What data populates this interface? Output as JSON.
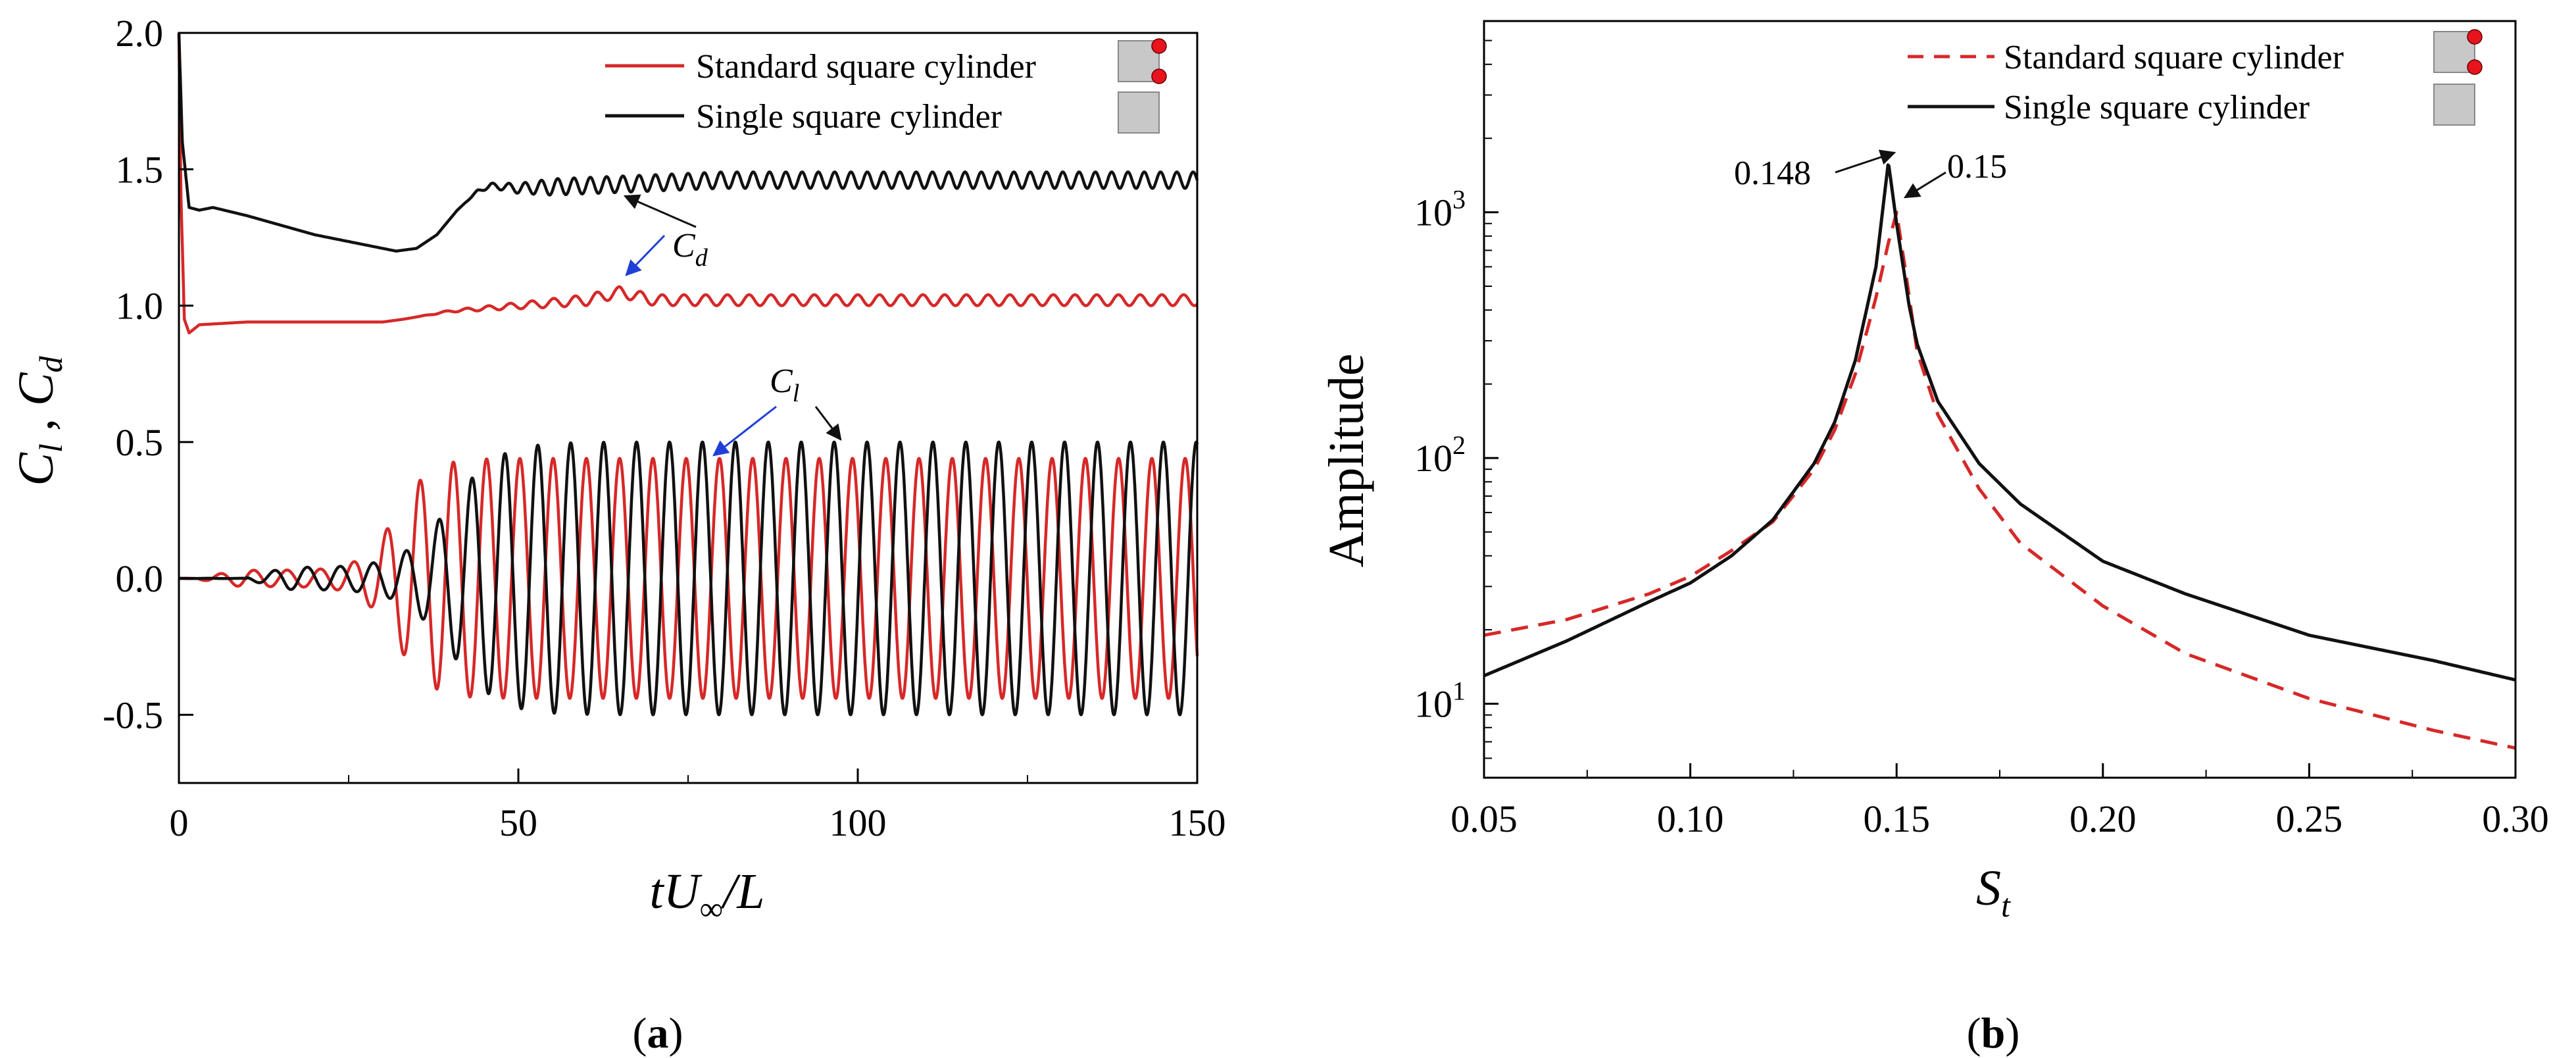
{
  "colors": {
    "red": "#d62828",
    "black": "#111111",
    "blue": "#1f3fd6",
    "gray": "#c8c8c8"
  },
  "chart_data": [
    {
      "id": "a",
      "type": "line",
      "caption_letter": "a",
      "xlabel": {
        "t": "t",
        "U": "U",
        "sub": "∞",
        "rest": "/L"
      },
      "ylabel": {
        "Cl": "C",
        "Cl_sub": "l",
        "sep": " , ",
        "Cd": "C",
        "Cd_sub": "d"
      },
      "xlim": [
        0,
        150
      ],
      "ylim": [
        -0.75,
        2.0
      ],
      "xticks": [
        {
          "value": 0,
          "label": "0"
        },
        {
          "value": 50,
          "label": "50"
        },
        {
          "value": 100,
          "label": "100"
        },
        {
          "value": 150,
          "label": "150"
        }
      ],
      "yticks": [
        {
          "value": -0.5,
          "label": "-0.5"
        },
        {
          "value": 0.0,
          "label": "0.0"
        },
        {
          "value": 0.5,
          "label": "0.5"
        },
        {
          "value": 1.0,
          "label": "1.0"
        },
        {
          "value": 1.5,
          "label": "1.5"
        },
        {
          "value": 2.0,
          "label": "2.0"
        }
      ],
      "legend": [
        {
          "name": "Standard square cylinder",
          "color": "#d62828",
          "style": "solid",
          "icon": "cylinder-with-dots"
        },
        {
          "name": "Single square cylinder",
          "color": "#111111",
          "style": "solid",
          "icon": "plain-cylinder"
        }
      ],
      "series": [
        {
          "name": "Standard square cylinder",
          "quantity": "Cd",
          "color": "#d62828",
          "anchors": [
            [
              0,
              2.0
            ],
            [
              0.3,
              1.4
            ],
            [
              0.8,
              0.95
            ],
            [
              1.5,
              0.9
            ],
            [
              3,
              0.93
            ],
            [
              10,
              0.94
            ],
            [
              20,
              0.94
            ],
            [
              30,
              0.94
            ],
            [
              33,
              0.95
            ],
            [
              40,
              0.98
            ],
            [
              50,
              1.0
            ],
            [
              60,
              1.02
            ],
            [
              65,
              1.05
            ],
            [
              70,
              1.02
            ],
            [
              150,
              1.02
            ]
          ],
          "oscillation": {
            "start": 35,
            "full": 60,
            "amp": 0.02,
            "period": 3.2
          }
        },
        {
          "name": "Single square cylinder",
          "quantity": "Cd",
          "color": "#111111",
          "anchors": [
            [
              0,
              2.0
            ],
            [
              0.5,
              1.6
            ],
            [
              1.5,
              1.36
            ],
            [
              3,
              1.35
            ],
            [
              5,
              1.36
            ],
            [
              10,
              1.33
            ],
            [
              20,
              1.26
            ],
            [
              28,
              1.22
            ],
            [
              32,
              1.2
            ],
            [
              35,
              1.21
            ],
            [
              38,
              1.26
            ],
            [
              41,
              1.35
            ],
            [
              44,
              1.42
            ],
            [
              46,
              1.44
            ],
            [
              50,
              1.43
            ],
            [
              60,
              1.44
            ],
            [
              80,
              1.46
            ],
            [
              150,
              1.46
            ]
          ],
          "oscillation": {
            "start": 42,
            "full": 55,
            "amp": 0.03,
            "period": 2.4
          }
        },
        {
          "name": "Standard square cylinder",
          "quantity": "Cl",
          "color": "#d62828",
          "period": 4.9,
          "phase": 0.0,
          "growth_start": 3,
          "ramp_mid": 32,
          "ramp_width": 2.5,
          "amp_small": 0.03,
          "amp_full": 0.44
        },
        {
          "name": "Single square cylinder",
          "quantity": "Cl",
          "color": "#111111",
          "period": 4.85,
          "phase": 2.2,
          "growth_start": 10,
          "ramp_mid": 40,
          "ramp_width": 3.5,
          "amp_small": 0.04,
          "amp_full": 0.5
        }
      ],
      "annotations": [
        {
          "label_main": "C",
          "label_sub": "d",
          "arrows": [
            "black",
            "blue"
          ]
        },
        {
          "label_main": "C",
          "label_sub": "l",
          "arrows": [
            "blue",
            "black"
          ]
        }
      ]
    },
    {
      "id": "b",
      "type": "line",
      "caption_letter": "b",
      "yscale": "log",
      "xlabel": {
        "S": "S",
        "sub": "t"
      },
      "ylabel": "Amplitude",
      "xlim": [
        0.05,
        0.3
      ],
      "ylim": [
        5,
        6000
      ],
      "xticks": [
        {
          "value": 0.05,
          "label": "0.05"
        },
        {
          "value": 0.1,
          "label": "0.10"
        },
        {
          "value": 0.15,
          "label": "0.15"
        },
        {
          "value": 0.2,
          "label": "0.20"
        },
        {
          "value": 0.25,
          "label": "0.25"
        },
        {
          "value": 0.3,
          "label": "0.30"
        }
      ],
      "yticks": [
        {
          "value": 10,
          "base": "10",
          "exp": "1"
        },
        {
          "value": 100,
          "base": "10",
          "exp": "2"
        },
        {
          "value": 1000,
          "base": "10",
          "exp": "3"
        }
      ],
      "legend": [
        {
          "name": "Standard square cylinder",
          "color": "#d62828",
          "style": "dashed",
          "icon": "cylinder-with-dots"
        },
        {
          "name": "Single square cylinder",
          "color": "#111111",
          "style": "solid",
          "icon": "plain-cylinder"
        }
      ],
      "series": [
        {
          "name": "Standard square cylinder",
          "color": "#d62828",
          "style": "dashed",
          "points": [
            [
              0.05,
              19
            ],
            [
              0.07,
              22
            ],
            [
              0.09,
              28
            ],
            [
              0.1,
              33
            ],
            [
              0.11,
              42
            ],
            [
              0.12,
              55
            ],
            [
              0.13,
              90
            ],
            [
              0.135,
              130
            ],
            [
              0.14,
              220
            ],
            [
              0.145,
              450
            ],
            [
              0.148,
              750
            ],
            [
              0.15,
              1000
            ],
            [
              0.152,
              600
            ],
            [
              0.155,
              270
            ],
            [
              0.16,
              150
            ],
            [
              0.17,
              75
            ],
            [
              0.18,
              45
            ],
            [
              0.2,
              25
            ],
            [
              0.22,
              16
            ],
            [
              0.25,
              10.5
            ],
            [
              0.28,
              7.8
            ],
            [
              0.3,
              6.6
            ]
          ]
        },
        {
          "name": "Single square cylinder",
          "color": "#111111",
          "style": "solid",
          "points": [
            [
              0.05,
              13
            ],
            [
              0.07,
              18
            ],
            [
              0.09,
              26
            ],
            [
              0.1,
              31
            ],
            [
              0.11,
              40
            ],
            [
              0.12,
              56
            ],
            [
              0.13,
              95
            ],
            [
              0.135,
              140
            ],
            [
              0.14,
              250
            ],
            [
              0.145,
              600
            ],
            [
              0.148,
              1600
            ],
            [
              0.15,
              900
            ],
            [
              0.153,
              420
            ],
            [
              0.155,
              290
            ],
            [
              0.16,
              170
            ],
            [
              0.17,
              95
            ],
            [
              0.18,
              65
            ],
            [
              0.2,
              38
            ],
            [
              0.22,
              28
            ],
            [
              0.25,
              19
            ],
            [
              0.28,
              15
            ],
            [
              0.3,
              12.5
            ]
          ]
        }
      ],
      "annotations": [
        {
          "text": "0.148",
          "x": 0.148,
          "y": 1600
        },
        {
          "text": "0.15",
          "x": 0.15,
          "y": 1000
        }
      ]
    }
  ]
}
